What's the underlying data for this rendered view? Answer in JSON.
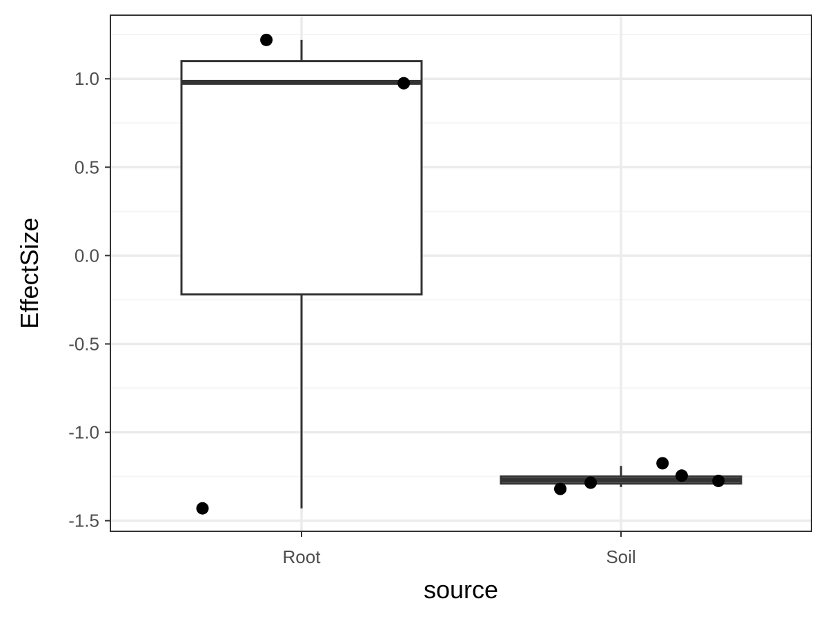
{
  "chart_data": {
    "type": "box",
    "title": "",
    "xlabel": "source",
    "ylabel": "EffectSize",
    "ylim": [
      -1.56,
      1.36
    ],
    "y_ticks": [
      1.0,
      0.5,
      0.0,
      -0.5,
      -1.0,
      -1.5
    ],
    "y_tick_labels": [
      "1.0",
      "0.5",
      "0.0",
      "-0.5",
      "-1.0",
      "-1.5"
    ],
    "grid": true,
    "categories": [
      "Root",
      "Soil"
    ],
    "boxes": [
      {
        "category": "Root",
        "min": -1.43,
        "q1": -0.22,
        "median": 0.98,
        "q3": 1.1,
        "max": 1.22
      },
      {
        "category": "Soil",
        "min": -1.31,
        "q1": -1.29,
        "median": -1.27,
        "q3": -1.25,
        "max": -1.19
      }
    ],
    "points": [
      {
        "category": "Root",
        "jitter": -0.11,
        "y": 1.22
      },
      {
        "category": "Root",
        "jitter": 0.32,
        "y": 0.975
      },
      {
        "category": "Root",
        "jitter": -0.31,
        "y": -1.43
      },
      {
        "category": "Soil",
        "jitter": -0.19,
        "y": -1.32
      },
      {
        "category": "Soil",
        "jitter": -0.095,
        "y": -1.285
      },
      {
        "category": "Soil",
        "jitter": 0.13,
        "y": -1.175
      },
      {
        "category": "Soil",
        "jitter": 0.19,
        "y": -1.245
      },
      {
        "category": "Soil",
        "jitter": 0.305,
        "y": -1.275
      }
    ],
    "colors": {
      "panel_border": "#333333",
      "grid_major": "#ebebeb",
      "grid_minor": "#f5f5f5",
      "box_line": "#333333",
      "box_fill": "#ffffff",
      "point": "#000000"
    }
  }
}
